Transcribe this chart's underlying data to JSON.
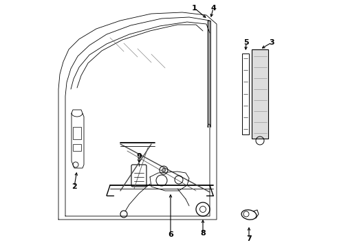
{
  "bg_color": "#ffffff",
  "line_color": "#000000",
  "gray_fill": "#cccccc",
  "figsize": [
    4.9,
    3.6
  ],
  "dpi": 100
}
